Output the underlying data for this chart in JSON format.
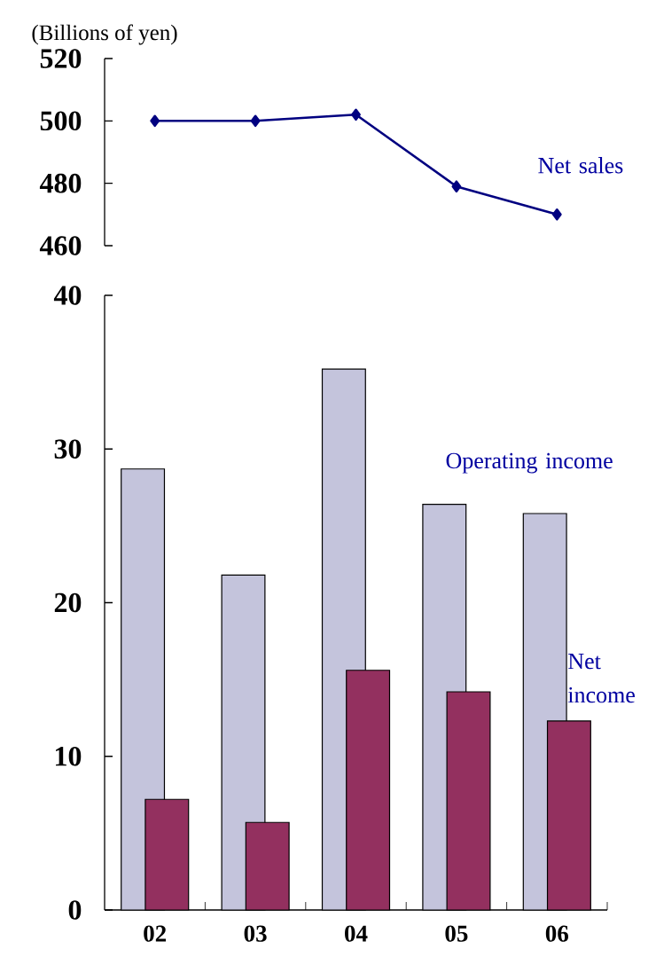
{
  "chart_data": [
    {
      "type": "line",
      "ylabel": "(Billions of yen)",
      "categories": [
        "02",
        "03",
        "04",
        "05",
        "06"
      ],
      "series": [
        {
          "name": "Net sales",
          "color": "#000080",
          "values": [
            500,
            500,
            502,
            479,
            470
          ]
        }
      ],
      "ylim": [
        460,
        520
      ],
      "yticks": [
        460,
        480,
        500,
        520
      ],
      "marker": "diamond",
      "line_style": "solid",
      "tick_labels": "y"
    },
    {
      "type": "bar",
      "categories": [
        "02",
        "03",
        "04",
        "05",
        "06"
      ],
      "series": [
        {
          "name": "Operating income",
          "color": "#c4c4dc",
          "values": [
            28.7,
            21.8,
            35.2,
            26.4,
            25.8
          ]
        },
        {
          "name": "Net income",
          "color": "#93305f",
          "values": [
            7.2,
            5.7,
            15.6,
            14.2,
            12.3
          ]
        }
      ],
      "ylim": [
        0,
        40
      ],
      "yticks": [
        0,
        10,
        20,
        30,
        40
      ]
    }
  ]
}
